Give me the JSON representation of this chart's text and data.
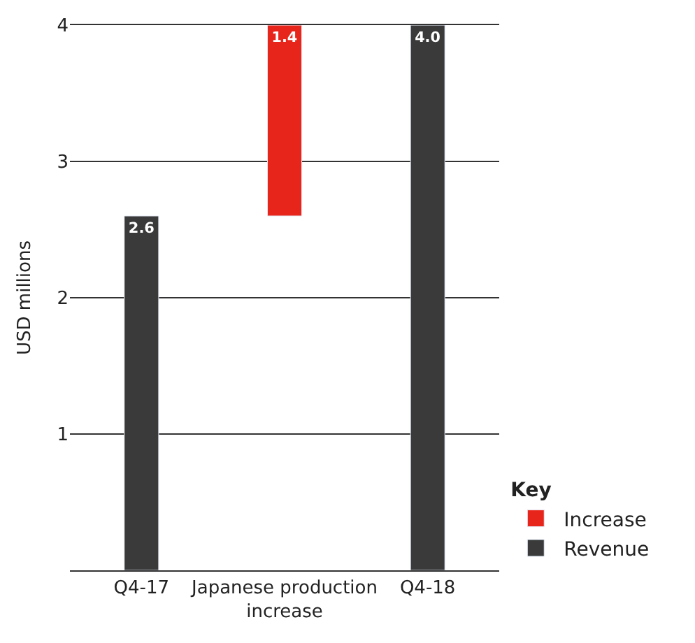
{
  "chart_data": {
    "type": "bar",
    "ylabel": "USD millions",
    "legend_title": "Key",
    "categories": [
      "Q4-17",
      "Japanese production increase",
      "Q4-18"
    ],
    "series": [
      {
        "name": "Increase",
        "color": "#e8251b",
        "values": [
          null,
          1.4,
          null
        ],
        "base": [
          null,
          2.6,
          null
        ],
        "value_labels": [
          null,
          "1.4",
          null
        ]
      },
      {
        "name": "Revenue",
        "color": "#3a3a3a",
        "values": [
          2.6,
          null,
          4.0
        ],
        "value_labels": [
          "2.6",
          null,
          "4.0"
        ]
      }
    ],
    "ylim": [
      0,
      4
    ],
    "yticks": [
      1,
      2,
      3,
      4
    ],
    "grid": "y",
    "legend": "bottom right"
  }
}
